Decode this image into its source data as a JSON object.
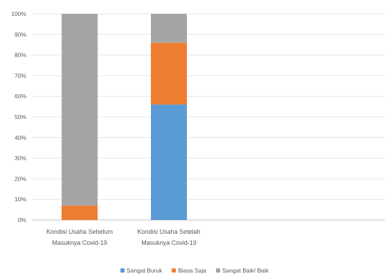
{
  "chart_data": {
    "type": "bar",
    "stacked": true,
    "normalized": true,
    "categories": [
      [
        "Kondisi Usaha Sebelum",
        "Masuknya Covid-19"
      ],
      [
        "Kondisi Usaha Setelah",
        "Masuknya Covid-19"
      ]
    ],
    "series": [
      {
        "name": "Sangat Buruk",
        "color": "#5b9bd5",
        "values": [
          0,
          56
        ]
      },
      {
        "name": "Biasa Saja",
        "color": "#ed7d31",
        "values": [
          7,
          30
        ]
      },
      {
        "name": "Sangat Baik/ Baik",
        "color": "#a5a5a5",
        "values": [
          93,
          14
        ]
      }
    ],
    "y_ticks": [
      "0%",
      "10%",
      "20%",
      "30%",
      "40%",
      "50%",
      "60%",
      "70%",
      "80%",
      "90%",
      "100%"
    ],
    "ylim": [
      0,
      100
    ],
    "grid": true,
    "legend_position": "bottom"
  }
}
